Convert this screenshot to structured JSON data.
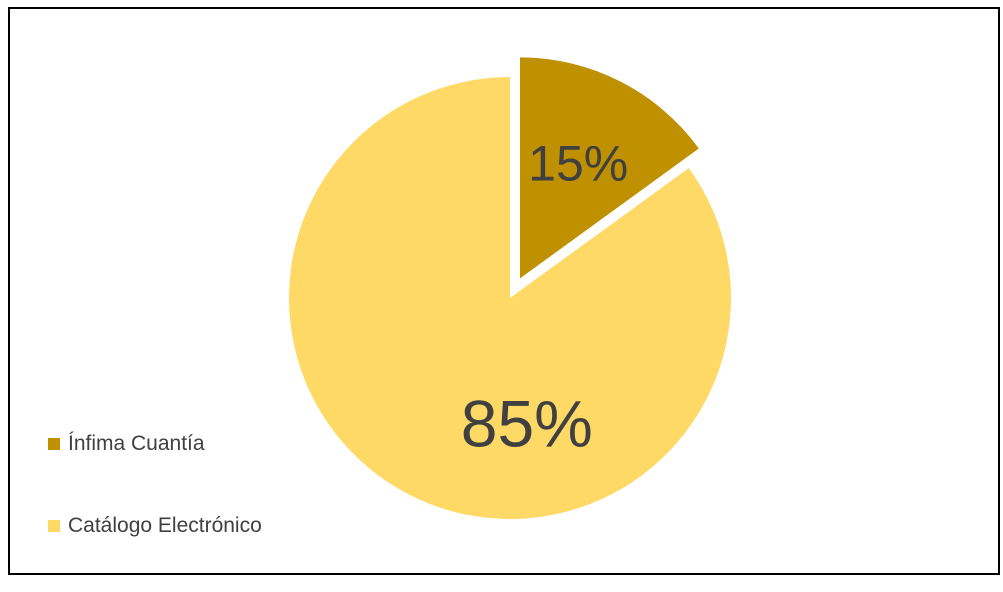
{
  "chart_data": {
    "type": "pie",
    "categories": [
      "Ínfima Cuantía",
      "Catálogo Electrónico"
    ],
    "values": [
      15,
      85
    ],
    "labels": [
      "15%",
      "85%"
    ],
    "colors": [
      "#bf9000",
      "#ffd966"
    ],
    "exploded": [
      true,
      false
    ],
    "legend_position": "left",
    "title": ""
  },
  "legend": {
    "items": [
      {
        "label": "Ínfima Cuantía",
        "color": "#bf9000"
      },
      {
        "label": "Catálogo Electrónico",
        "color": "#ffd966"
      }
    ]
  }
}
